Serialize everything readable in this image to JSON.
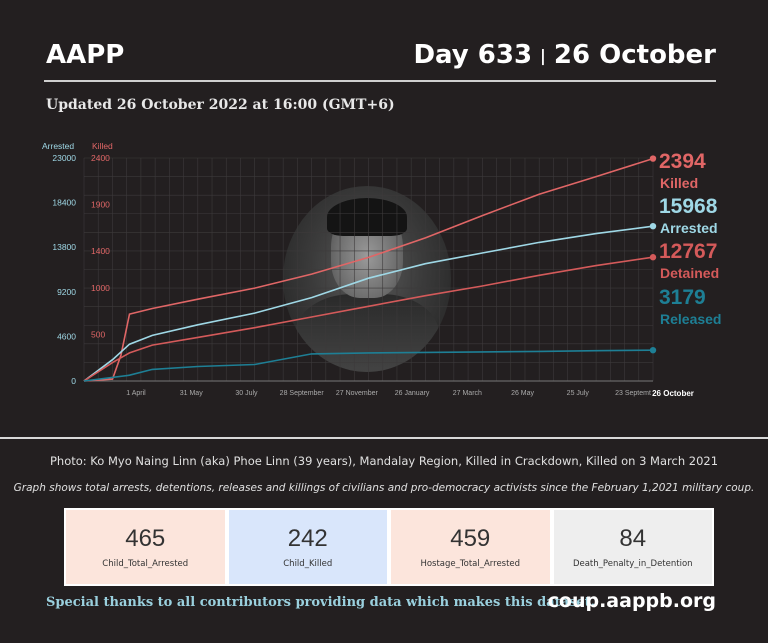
{
  "header": {
    "title": "AAPP",
    "day": "Day 633",
    "date": "26 October"
  },
  "updated": "Updated 26 October 2022 at 16:00 (GMT+6)",
  "colors": {
    "killed": "#e06666",
    "arrested": "#9fd8e6",
    "detained": "#d45a5a",
    "released": "#1e7f95"
  },
  "chart_data": {
    "type": "line",
    "axis_left_label": "Arrested",
    "axis_right_label": "Killed",
    "arrested_ticks": [
      "23000",
      "18400",
      "13800",
      "9200",
      "4600",
      "0"
    ],
    "killed_ticks": [
      "2400",
      "1900",
      "1400",
      "1000",
      "500"
    ],
    "ylim_arrested": [
      0,
      23000
    ],
    "ylim_killed": [
      0,
      2400
    ],
    "x_ticks": [
      "1 April",
      "31 May",
      "30 July",
      "28 September",
      "27 November",
      "26 January",
      "27 March",
      "26 May",
      "25 July",
      "23 Septemt"
    ],
    "x_end_label": "26 October",
    "series": [
      {
        "name": "Killed",
        "axis": "killed",
        "final": "2394",
        "x": [
          0,
          0.05,
          0.065,
          0.08,
          0.12,
          0.2,
          0.3,
          0.4,
          0.5,
          0.6,
          0.7,
          0.8,
          0.9,
          1.0
        ],
        "values": [
          0,
          20,
          280,
          720,
          780,
          880,
          1000,
          1150,
          1330,
          1540,
          1780,
          2010,
          2200,
          2394
        ]
      },
      {
        "name": "Arrested",
        "axis": "arrested",
        "final": "15968",
        "x": [
          0,
          0.05,
          0.08,
          0.12,
          0.2,
          0.3,
          0.4,
          0.5,
          0.6,
          0.7,
          0.8,
          0.9,
          1.0
        ],
        "values": [
          0,
          2200,
          3800,
          4700,
          5800,
          7000,
          8600,
          10600,
          12100,
          13200,
          14300,
          15200,
          15968
        ]
      },
      {
        "name": "Detained",
        "axis": "arrested",
        "final": "12767",
        "x": [
          0,
          0.05,
          0.08,
          0.12,
          0.2,
          0.3,
          0.4,
          0.5,
          0.6,
          0.7,
          0.8,
          0.9,
          1.0
        ],
        "values": [
          0,
          1900,
          2900,
          3700,
          4500,
          5500,
          6600,
          7700,
          8800,
          9800,
          10900,
          11900,
          12767
        ]
      },
      {
        "name": "Released",
        "axis": "arrested",
        "final": "3179",
        "x": [
          0,
          0.08,
          0.12,
          0.2,
          0.3,
          0.4,
          0.5,
          0.6,
          0.7,
          0.8,
          0.9,
          1.0
        ],
        "values": [
          0,
          600,
          1200,
          1500,
          1700,
          2800,
          2900,
          2950,
          3000,
          3050,
          3120,
          3179
        ]
      }
    ]
  },
  "captions": {
    "photo": "Photo: Ko Myo Naing Linn (aka) Phoe Linn (39 years), Mandalay Region, Killed in Crackdown, Killed on 3 March 2021",
    "graph": "Graph shows total arrests, detentions, releases and killings of civilians and pro-democracy activists since the February 1,2021 military coup."
  },
  "cards": [
    {
      "value": "465",
      "label": "Child_Total_Arrested"
    },
    {
      "value": "242",
      "label": "Child_Killed"
    },
    {
      "value": "459",
      "label": "Hostage_Total_Arrested"
    },
    {
      "value": "84",
      "label": "Death_Penalty_in_Detention"
    }
  ],
  "footer": {
    "thanks": "Special thanks to all contributors providing data which makes this dataset.",
    "site": "coup.aappb.org"
  }
}
